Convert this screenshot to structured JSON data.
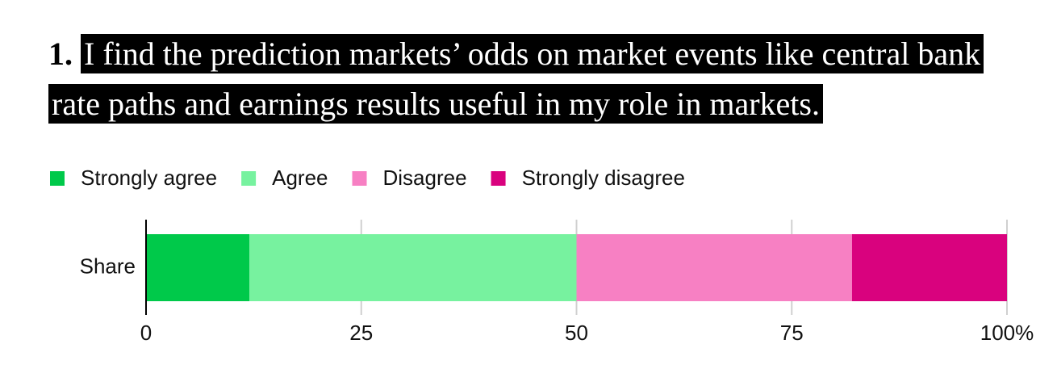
{
  "chart_data": {
    "type": "bar",
    "orientation": "horizontal",
    "stacked": true,
    "question_number": "1.",
    "title": "I find the prediction markets’ odds on market events like central bank rate paths and earnings results useful in my role in markets.",
    "categories": [
      "Share"
    ],
    "series": [
      {
        "name": "Strongly agree",
        "color": "#00c94a",
        "values": [
          12
        ]
      },
      {
        "name": "Agree",
        "color": "#77f29f",
        "values": [
          38
        ]
      },
      {
        "name": "Disagree",
        "color": "#f780c3",
        "values": [
          32
        ]
      },
      {
        "name": "Strongly disagree",
        "color": "#d9027e",
        "values": [
          18
        ]
      }
    ],
    "xlim": [
      0,
      100
    ],
    "xticks": [
      0,
      25,
      50,
      75,
      {
        "value": 100,
        "label": "100%"
      }
    ],
    "grid": true
  }
}
